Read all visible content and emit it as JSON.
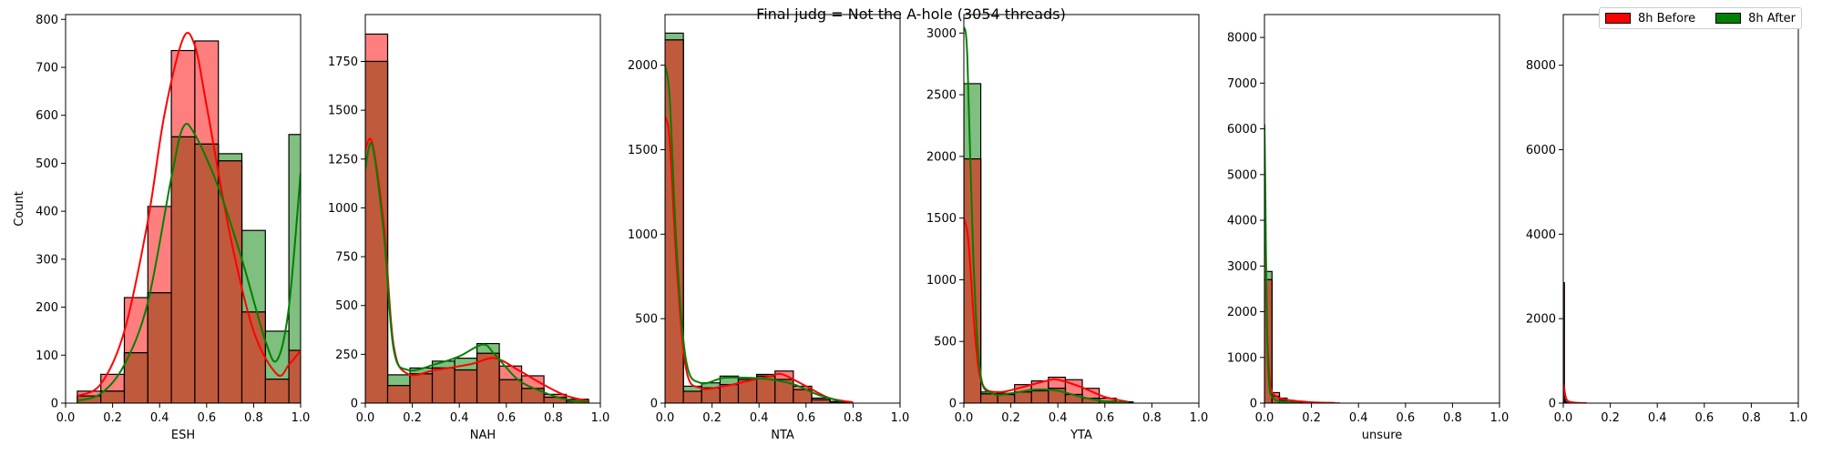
{
  "figure": {
    "title": "Final judg = Not the A-hole (3054 threads)"
  },
  "legend": {
    "items": [
      {
        "label": "8h Before",
        "color": "#ff0000"
      },
      {
        "label": "8h After",
        "color": "#008000"
      }
    ],
    "placement": "top-right"
  },
  "colors": {
    "before_fill": "#ff0000",
    "after_fill": "#008000",
    "overlap_fill": "#c05a3c",
    "before_line": "#ff0000",
    "after_line": "#008000"
  },
  "chart_data": [
    {
      "type": "bar",
      "subtype": "histogram-with-kde",
      "xlabel": "ESH",
      "ylabel": "Count",
      "xlim": [
        0,
        1
      ],
      "ylim": [
        0,
        810
      ],
      "xticks": [
        "0.0",
        "0.2",
        "0.4",
        "0.6",
        "0.8",
        "1.0"
      ],
      "yticks": [
        "0",
        "100",
        "200",
        "300",
        "400",
        "500",
        "600",
        "700",
        "800"
      ],
      "bin_edges": [
        0.05,
        0.15,
        0.25,
        0.35,
        0.45,
        0.55,
        0.65,
        0.75,
        0.85,
        0.95,
        1.0
      ],
      "series": [
        {
          "name": "8h Before",
          "values": [
            25,
            60,
            220,
            410,
            735,
            755,
            505,
            190,
            50,
            110
          ]
        },
        {
          "name": "8h After",
          "values": [
            15,
            25,
            105,
            230,
            555,
            540,
            520,
            360,
            150,
            560
          ]
        }
      ],
      "kde": [
        {
          "name": "8h Before",
          "points": [
            [
              0.05,
              15
            ],
            [
              0.15,
              40
            ],
            [
              0.25,
              150
            ],
            [
              0.35,
              380
            ],
            [
              0.42,
              600
            ],
            [
              0.5,
              760
            ],
            [
              0.55,
              745
            ],
            [
              0.6,
              620
            ],
            [
              0.7,
              350
            ],
            [
              0.8,
              150
            ],
            [
              0.9,
              60
            ],
            [
              0.95,
              80
            ],
            [
              1.0,
              110
            ]
          ]
        },
        {
          "name": "8h After",
          "points": [
            [
              0.05,
              5
            ],
            [
              0.15,
              20
            ],
            [
              0.25,
              80
            ],
            [
              0.35,
              210
            ],
            [
              0.45,
              470
            ],
            [
              0.5,
              575
            ],
            [
              0.55,
              560
            ],
            [
              0.65,
              450
            ],
            [
              0.75,
              300
            ],
            [
              0.85,
              130
            ],
            [
              0.9,
              90
            ],
            [
              0.95,
              200
            ],
            [
              1.0,
              480
            ]
          ]
        }
      ]
    },
    {
      "type": "bar",
      "subtype": "histogram-with-kde",
      "xlabel": "NAH",
      "ylabel": "",
      "xlim": [
        0,
        1
      ],
      "ylim": [
        0,
        1990
      ],
      "xticks": [
        "0.0",
        "0.2",
        "0.4",
        "0.6",
        "0.8",
        "1.0"
      ],
      "yticks": [
        "0",
        "250",
        "500",
        "750",
        "1000",
        "1250",
        "1500",
        "1750"
      ],
      "bin_edges": [
        0,
        0.095,
        0.19,
        0.285,
        0.38,
        0.475,
        0.57,
        0.665,
        0.76,
        0.855,
        0.95
      ],
      "series": [
        {
          "name": "8h Before",
          "values": [
            1890,
            90,
            150,
            180,
            170,
            255,
            190,
            140,
            45,
            20
          ]
        },
        {
          "name": "8h After",
          "values": [
            1750,
            145,
            180,
            215,
            230,
            305,
            120,
            75,
            30,
            10
          ]
        }
      ],
      "kde": [
        {
          "name": "8h Before",
          "points": [
            [
              0,
              1300
            ],
            [
              0.03,
              1330
            ],
            [
              0.08,
              900
            ],
            [
              0.12,
              300
            ],
            [
              0.18,
              150
            ],
            [
              0.3,
              170
            ],
            [
              0.45,
              200
            ],
            [
              0.55,
              230
            ],
            [
              0.65,
              170
            ],
            [
              0.75,
              100
            ],
            [
              0.85,
              40
            ],
            [
              0.95,
              10
            ]
          ]
        },
        {
          "name": "8h After",
          "points": [
            [
              0,
              1200
            ],
            [
              0.03,
              1320
            ],
            [
              0.08,
              850
            ],
            [
              0.12,
              280
            ],
            [
              0.18,
              170
            ],
            [
              0.3,
              200
            ],
            [
              0.4,
              240
            ],
            [
              0.5,
              300
            ],
            [
              0.55,
              250
            ],
            [
              0.65,
              120
            ],
            [
              0.75,
              60
            ],
            [
              0.85,
              20
            ],
            [
              0.95,
              5
            ]
          ]
        }
      ]
    },
    {
      "type": "bar",
      "subtype": "histogram-with-kde",
      "xlabel": "NTA",
      "ylabel": "",
      "xlim": [
        0,
        1
      ],
      "ylim": [
        0,
        2300
      ],
      "xticks": [
        "0.0",
        "0.2",
        "0.4",
        "0.6",
        "0.8",
        "1.0"
      ],
      "yticks": [
        "0",
        "500",
        "1000",
        "1500",
        "2000"
      ],
      "bin_edges": [
        0,
        0.078,
        0.156,
        0.234,
        0.312,
        0.39,
        0.468,
        0.546,
        0.624,
        0.702,
        0.78
      ],
      "series": [
        {
          "name": "8h Before",
          "values": [
            2150,
            70,
            90,
            110,
            140,
            170,
            190,
            100,
            30,
            10
          ]
        },
        {
          "name": "8h After",
          "values": [
            2190,
            100,
            120,
            160,
            150,
            160,
            140,
            80,
            20,
            5
          ]
        }
      ],
      "kde": [
        {
          "name": "8h Before",
          "points": [
            [
              0,
              1700
            ],
            [
              0.02,
              1550
            ],
            [
              0.05,
              800
            ],
            [
              0.09,
              200
            ],
            [
              0.15,
              90
            ],
            [
              0.25,
              100
            ],
            [
              0.35,
              130
            ],
            [
              0.45,
              160
            ],
            [
              0.5,
              170
            ],
            [
              0.6,
              100
            ],
            [
              0.7,
              30
            ],
            [
              0.8,
              5
            ]
          ]
        },
        {
          "name": "8h After",
          "points": [
            [
              0,
              2000
            ],
            [
              0.02,
              1800
            ],
            [
              0.05,
              900
            ],
            [
              0.09,
              250
            ],
            [
              0.15,
              120
            ],
            [
              0.25,
              150
            ],
            [
              0.35,
              150
            ],
            [
              0.45,
              140
            ],
            [
              0.55,
              110
            ],
            [
              0.65,
              50
            ],
            [
              0.75,
              10
            ]
          ]
        }
      ]
    },
    {
      "type": "bar",
      "subtype": "histogram-with-kde",
      "xlabel": "YTA",
      "ylabel": "",
      "xlim": [
        0,
        1
      ],
      "ylim": [
        0,
        3150
      ],
      "xticks": [
        "0.0",
        "0.2",
        "0.4",
        "0.6",
        "0.8",
        "1.0"
      ],
      "yticks": [
        "0",
        "500",
        "1000",
        "1500",
        "2000",
        "2500",
        "3000"
      ],
      "bin_edges": [
        0,
        0.072,
        0.144,
        0.216,
        0.288,
        0.36,
        0.432,
        0.504,
        0.576,
        0.648,
        0.72
      ],
      "series": [
        {
          "name": "8h Before",
          "values": [
            1980,
            75,
            80,
            150,
            180,
            210,
            190,
            120,
            40,
            10
          ]
        },
        {
          "name": "8h After",
          "values": [
            2590,
            90,
            70,
            90,
            100,
            120,
            70,
            40,
            15,
            5
          ]
        }
      ],
      "kde": [
        {
          "name": "8h Before",
          "points": [
            [
              0,
              1500
            ],
            [
              0.02,
              1300
            ],
            [
              0.05,
              500
            ],
            [
              0.08,
              150
            ],
            [
              0.15,
              90
            ],
            [
              0.25,
              130
            ],
            [
              0.35,
              180
            ],
            [
              0.4,
              190
            ],
            [
              0.5,
              130
            ],
            [
              0.6,
              50
            ],
            [
              0.7,
              10
            ]
          ]
        },
        {
          "name": "8h After",
          "points": [
            [
              0,
              3050
            ],
            [
              0.015,
              2800
            ],
            [
              0.04,
              1200
            ],
            [
              0.07,
              250
            ],
            [
              0.12,
              80
            ],
            [
              0.2,
              80
            ],
            [
              0.3,
              110
            ],
            [
              0.4,
              100
            ],
            [
              0.5,
              50
            ],
            [
              0.6,
              15
            ],
            [
              0.7,
              5
            ]
          ]
        }
      ]
    },
    {
      "type": "bar",
      "subtype": "histogram-with-kde",
      "xlabel": "unsure",
      "ylabel": "",
      "xlim": [
        0,
        1
      ],
      "ylim": [
        0,
        8500
      ],
      "xticks": [
        "0.0",
        "0.2",
        "0.4",
        "0.6",
        "0.8",
        "1.0"
      ],
      "yticks": [
        "0",
        "1000",
        "2000",
        "3000",
        "4000",
        "5000",
        "6000",
        "7000",
        "8000"
      ],
      "bin_edges": [
        0,
        0.032,
        0.064,
        0.096,
        0.128,
        0.16,
        0.192,
        0.224,
        0.256,
        0.288,
        0.32
      ],
      "series": [
        {
          "name": "8h Before",
          "values": [
            2700,
            230,
            110,
            60,
            40,
            25,
            15,
            10,
            5,
            3
          ]
        },
        {
          "name": "8h After",
          "values": [
            2880,
            150,
            60,
            25,
            10,
            5,
            3,
            0,
            0,
            0
          ]
        }
      ],
      "kde": [
        {
          "name": "8h Before",
          "points": [
            [
              0,
              4800
            ],
            [
              0.005,
              3500
            ],
            [
              0.012,
              1500
            ],
            [
              0.025,
              400
            ],
            [
              0.05,
              150
            ],
            [
              0.1,
              70
            ],
            [
              0.2,
              20
            ],
            [
              0.3,
              5
            ]
          ]
        },
        {
          "name": "8h After",
          "points": [
            [
              0,
              6100
            ],
            [
              0.004,
              4500
            ],
            [
              0.01,
              1800
            ],
            [
              0.02,
              400
            ],
            [
              0.04,
              100
            ],
            [
              0.08,
              30
            ],
            [
              0.15,
              5
            ]
          ]
        }
      ]
    },
    {
      "type": "bar",
      "subtype": "histogram-with-kde",
      "xlabel": "",
      "ylabel": "",
      "xlim": [
        0,
        1
      ],
      "ylim": [
        0,
        9200
      ],
      "xticks": [
        "0.0",
        "0.2",
        "0.4",
        "0.6",
        "0.8",
        "1.0"
      ],
      "yticks": [
        "0",
        "2000",
        "4000",
        "6000",
        "8000"
      ],
      "bin_edges": [
        0,
        0.005,
        0.01,
        0.015,
        0.02,
        0.025
      ],
      "series": [
        {
          "name": "8h Before",
          "values": [
            2850,
            80,
            30,
            10,
            5
          ]
        },
        {
          "name": "8h After",
          "values": [
            0,
            0,
            0,
            0,
            0
          ]
        }
      ],
      "kde": [
        {
          "name": "8h Before",
          "points": [
            [
              0,
              450
            ],
            [
              0.004,
              350
            ],
            [
              0.01,
              150
            ],
            [
              0.02,
              50
            ],
            [
              0.05,
              10
            ],
            [
              0.1,
              0
            ]
          ]
        }
      ]
    }
  ]
}
